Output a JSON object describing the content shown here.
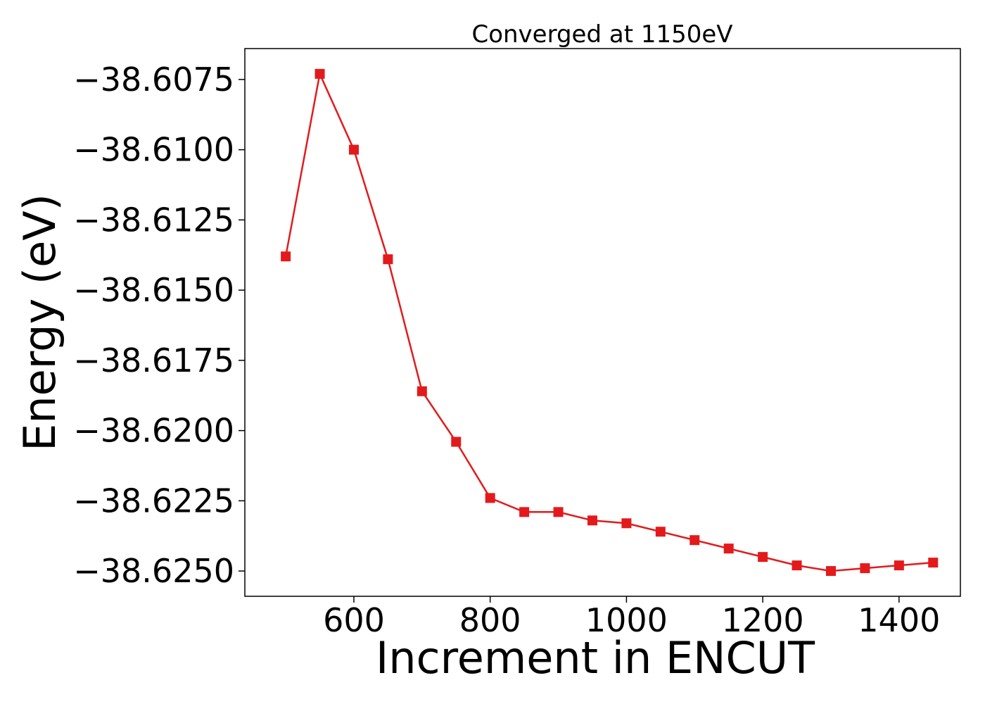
{
  "chart_data": {
    "type": "line",
    "title": "Converged at 1150eV",
    "xlabel": "Increment in ENCUT",
    "ylabel": "Energy (eV)",
    "xlim": [
      440,
      1490
    ],
    "ylim": [
      -38.6259,
      -38.6064
    ],
    "xticks": [
      600,
      800,
      1000,
      1200,
      1400
    ],
    "xtick_labels": [
      "600",
      "800",
      "1000",
      "1200",
      "1400"
    ],
    "yticks": [
      -38.6075,
      -38.61,
      -38.6125,
      -38.615,
      -38.6175,
      -38.62,
      -38.6225,
      -38.625
    ],
    "ytick_labels": [
      "−38.6075",
      "−38.6100",
      "−38.6125",
      "−38.6150",
      "−38.6175",
      "−38.6200",
      "−38.6225",
      "−38.6250"
    ],
    "grid": false,
    "color": "#e31a1c",
    "marker": "square",
    "series": [
      {
        "x": [
          500,
          550,
          600,
          650,
          700,
          750,
          800,
          850,
          900,
          950,
          1000,
          1050,
          1100,
          1150,
          1200,
          1250,
          1300,
          1350,
          1400,
          1450
        ],
        "y": [
          -38.6138,
          -38.6073,
          -38.61,
          -38.6139,
          -38.6186,
          -38.6204,
          -38.6224,
          -38.6229,
          -38.6229,
          -38.6232,
          -38.6233,
          -38.6236,
          -38.6239,
          -38.6242,
          -38.6245,
          -38.6248,
          -38.625,
          -38.6249,
          -38.6248,
          -38.6247
        ]
      }
    ]
  }
}
